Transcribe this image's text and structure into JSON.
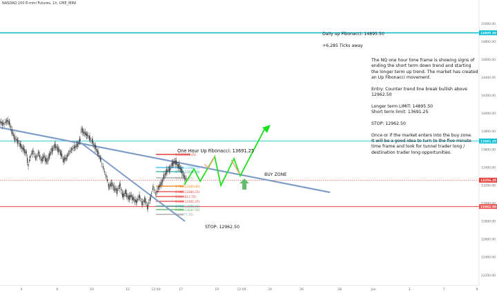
{
  "header": {
    "symbol": "NASDAQ 100 E-mini Futures, 1h, CME_MINI"
  },
  "annotations": {
    "daily_fib": "Daily up Fibonacci: 14895.50",
    "ticks_away": "+6,285 Ticks away",
    "description": "The NQ one hour time frame is showing signs of\nending the short term down trend and starting\nthe longer term up trend. The market has created\nan Up Fibonacci movement.\n\nEntry: Counter trend line break bullish above\n12962.50\n\nLonger term LIMIT: 14895.50\nShort term limit: 13691.25\n\nSTOP: 12962.50\n\nOnce or if the market enters into the buy zone.\nIt will be a good idea to turn to the five minute\ntime frame and look for tunnel trader long /\ndestination trader long opportunities.",
    "one_hour_fib": "One Hour Up Fibonacci: 13691.25",
    "buy_zone": "BUY ZONE",
    "stop": "STOP: 12962.50"
  },
  "colors": {
    "candle": "#333333",
    "trendline": "#7f9cc9",
    "daily_level": "#00bcd4",
    "one_hour_level": "#4dd0e1",
    "stop_level": "#ef5350",
    "projection": "#1fe01f",
    "projection_alt": "#f5a46a",
    "buy_arrow": "#66bb6a",
    "current_price": "#e53935"
  },
  "chart_data": {
    "type": "candlestick",
    "price_axis": {
      "ticks": [
        15000,
        14800,
        14600,
        14400,
        14200,
        14000,
        13800,
        13600,
        13400,
        13200,
        13000,
        12800,
        12600,
        12400,
        12200
      ],
      "range": [
        12150,
        15100
      ],
      "labels": [
        {
          "value": 14895.5,
          "text": "14895.50",
          "color": "#00bcd4"
        },
        {
          "value": 13691.25,
          "text": "13691.25",
          "color": "#00bcd4"
        },
        {
          "value": 13256.25,
          "text": "13256.25",
          "color": "#e53935"
        },
        {
          "value": 12962.5,
          "text": "12962.50",
          "color": "#ef5350"
        }
      ]
    },
    "time_axis": {
      "labels": [
        "4",
        "6",
        "10",
        "12",
        "12:00",
        "17",
        "19",
        "12:00",
        "24",
        "26",
        "28",
        "Jun",
        "3",
        "7",
        "9"
      ]
    },
    "horizontal_levels": [
      {
        "name": "daily-up-fibonacci",
        "value": 14895.5
      },
      {
        "name": "one-hour-up-fibonacci",
        "value": 13691.25
      },
      {
        "name": "stop",
        "value": 12962.5
      }
    ],
    "price_path": [
      [
        0,
        13900
      ],
      [
        6,
        13880
      ],
      [
        10,
        13920
      ],
      [
        14,
        13890
      ],
      [
        18,
        13780
      ],
      [
        22,
        13720
      ],
      [
        26,
        13690
      ],
      [
        30,
        13640
      ],
      [
        34,
        13600
      ],
      [
        38,
        13560
      ],
      [
        41,
        13420
      ],
      [
        44,
        13520
      ],
      [
        48,
        13580
      ],
      [
        52,
        13500
      ],
      [
        56,
        13560
      ],
      [
        60,
        13480
      ],
      [
        64,
        13520
      ],
      [
        68,
        13460
      ],
      [
        72,
        13540
      ],
      [
        76,
        13600
      ],
      [
        80,
        13640
      ],
      [
        84,
        13600
      ],
      [
        88,
        13560
      ],
      [
        92,
        13480
      ],
      [
        96,
        13500
      ],
      [
        100,
        13560
      ],
      [
        104,
        13600
      ],
      [
        108,
        13620
      ],
      [
        112,
        13640
      ],
      [
        116,
        13700
      ],
      [
        118,
        13820
      ],
      [
        122,
        13780
      ],
      [
        126,
        13760
      ],
      [
        130,
        13720
      ],
      [
        134,
        13680
      ],
      [
        138,
        13620
      ],
      [
        142,
        13560
      ],
      [
        146,
        13480
      ],
      [
        150,
        13380
      ],
      [
        154,
        13300
      ],
      [
        158,
        13180
      ],
      [
        162,
        13220
      ],
      [
        166,
        13160
      ],
      [
        170,
        13140
      ],
      [
        174,
        13200
      ],
      [
        178,
        13080
      ],
      [
        182,
        13120
      ],
      [
        186,
        13060
      ],
      [
        190,
        13080
      ],
      [
        194,
        13040
      ],
      [
        198,
        13020
      ],
      [
        202,
        13080
      ],
      [
        206,
        13000
      ],
      [
        210,
        13040
      ],
      [
        214,
        12960
      ],
      [
        218,
        13060
      ],
      [
        222,
        13180
      ],
      [
        226,
        13100
      ],
      [
        230,
        13180
      ],
      [
        234,
        13220
      ],
      [
        238,
        13300
      ],
      [
        242,
        13360
      ],
      [
        246,
        13380
      ],
      [
        250,
        13440
      ],
      [
        254,
        13460
      ],
      [
        258,
        13420
      ],
      [
        262,
        13380
      ],
      [
        266,
        13300
      ],
      [
        270,
        13260
      ]
    ],
    "fibonacci_retracement": {
      "levels": [
        {
          "ratio": "0.5",
          "label": "0.5(13691.25)",
          "value": 13691.25,
          "color": "#e53935"
        },
        {
          "ratio": "0.236",
          "label": "0.236(13568.75)",
          "value": 13568.75,
          "color": "#29b6f6"
        },
        {
          "ratio": "0.786",
          "label": "0.786(13522.50)",
          "value": 13522.5,
          "color": "#26a69a"
        },
        {
          "ratio": "1",
          "label": "1(13425.25)",
          "value": 13425.25,
          "color": "#9e9e9e"
        },
        {
          "ratio": "0.786",
          "label": "0.786(13346.00)",
          "value": 13346,
          "color": "#f57c00"
        },
        {
          "ratio": "0.382",
          "label": "0.382(13284.25)",
          "value": 13284.25,
          "color": "#e53935"
        },
        {
          "ratio": "0.5",
          "label": "0.5(13211.75)",
          "value": 13211.75,
          "color": "#e53935"
        },
        {
          "ratio": "0.618",
          "label": "0.618(13161.25)",
          "value": 13161.25,
          "color": "#e53935"
        },
        {
          "ratio": "0.786",
          "label": "0.786(13085.00)",
          "value": 13085,
          "color": "#26a69a"
        },
        {
          "ratio": "0.886",
          "label": "0.886(13037.50)",
          "value": 13037.5,
          "color": "#4caf50"
        },
        {
          "ratio": "1",
          "label": "1(12977.25)",
          "value": 12977.25,
          "color": "#9e9e9e"
        }
      ]
    }
  }
}
